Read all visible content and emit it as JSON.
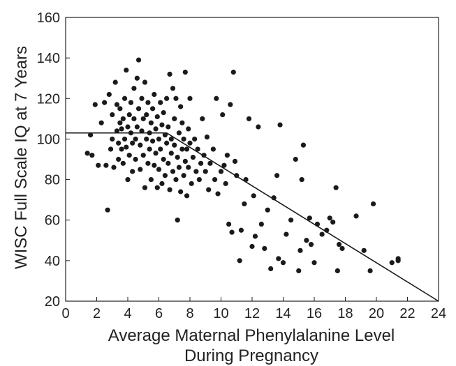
{
  "chart_data": {
    "type": "scatter",
    "title": "",
    "xlabel": "Average Maternal Phenylalanine Level",
    "xlabel_line2": "During Pregnancy",
    "ylabel": "WISC Full Scale IQ at 7 Years",
    "xlim": [
      0,
      24
    ],
    "ylim": [
      20,
      160
    ],
    "xticks": [
      0,
      2,
      4,
      6,
      8,
      10,
      12,
      14,
      16,
      18,
      20,
      22,
      24
    ],
    "yticks": [
      20,
      40,
      60,
      80,
      100,
      120,
      140,
      160
    ],
    "grid": false,
    "legend": "none",
    "colors": {
      "points": "#1a1a1a",
      "fit_line": "#1a1a1a",
      "axes": "#222222"
    },
    "fit_line": [
      [
        0,
        103
      ],
      [
        6.5,
        103
      ],
      [
        24,
        20
      ]
    ],
    "points": [
      [
        1.4,
        93
      ],
      [
        1.6,
        102
      ],
      [
        1.7,
        92
      ],
      [
        1.9,
        117
      ],
      [
        2.1,
        87
      ],
      [
        2.3,
        108
      ],
      [
        2.5,
        118
      ],
      [
        2.6,
        87
      ],
      [
        2.7,
        65
      ],
      [
        2.8,
        122
      ],
      [
        2.9,
        95
      ],
      [
        3.0,
        100
      ],
      [
        3.0,
        112
      ],
      [
        3.1,
        86
      ],
      [
        3.2,
        128
      ],
      [
        3.3,
        117
      ],
      [
        3.3,
        104
      ],
      [
        3.4,
        90
      ],
      [
        3.4,
        98
      ],
      [
        3.5,
        108
      ],
      [
        3.5,
        115
      ],
      [
        3.6,
        95
      ],
      [
        3.6,
        105
      ],
      [
        3.7,
        110
      ],
      [
        3.7,
        88
      ],
      [
        3.8,
        120
      ],
      [
        3.8,
        100
      ],
      [
        3.9,
        96
      ],
      [
        3.9,
        134
      ],
      [
        4.0,
        106
      ],
      [
        4.0,
        80
      ],
      [
        4.1,
        112
      ],
      [
        4.1,
        92
      ],
      [
        4.2,
        118
      ],
      [
        4.2,
        103
      ],
      [
        4.3,
        84
      ],
      [
        4.3,
        98
      ],
      [
        4.4,
        125
      ],
      [
        4.4,
        110
      ],
      [
        4.5,
        100
      ],
      [
        4.5,
        90
      ],
      [
        4.6,
        130
      ],
      [
        4.6,
        106
      ],
      [
        4.7,
        139
      ],
      [
        4.7,
        115
      ],
      [
        4.8,
        97
      ],
      [
        4.8,
        85
      ],
      [
        4.9,
        120
      ],
      [
        4.9,
        104
      ],
      [
        5.0,
        110
      ],
      [
        5.0,
        92
      ],
      [
        5.1,
        76
      ],
      [
        5.1,
        128
      ],
      [
        5.2,
        100
      ],
      [
        5.2,
        112
      ],
      [
        5.3,
        88
      ],
      [
        5.3,
        118
      ],
      [
        5.4,
        103
      ],
      [
        5.4,
        95
      ],
      [
        5.5,
        108
      ],
      [
        5.5,
        80
      ],
      [
        5.6,
        115
      ],
      [
        5.6,
        99
      ],
      [
        5.7,
        87
      ],
      [
        5.7,
        122
      ],
      [
        5.8,
        105
      ],
      [
        5.8,
        93
      ],
      [
        5.9,
        111
      ],
      [
        5.9,
        76
      ],
      [
        6.0,
        100
      ],
      [
        6.0,
        85
      ],
      [
        6.1,
        118
      ],
      [
        6.1,
        95
      ],
      [
        6.2,
        107
      ],
      [
        6.2,
        78
      ],
      [
        6.3,
        113
      ],
      [
        6.3,
        90
      ],
      [
        6.4,
        102
      ],
      [
        6.4,
        82
      ],
      [
        6.5,
        98
      ],
      [
        6.5,
        120
      ],
      [
        6.6,
        88
      ],
      [
        6.6,
        106
      ],
      [
        6.7,
        75
      ],
      [
        6.7,
        132
      ],
      [
        6.8,
        100
      ],
      [
        6.8,
        93
      ],
      [
        6.9,
        125
      ],
      [
        6.9,
        84
      ],
      [
        7.0,
        110
      ],
      [
        7.0,
        97
      ],
      [
        7.1,
        80
      ],
      [
        7.1,
        120
      ],
      [
        7.2,
        91
      ],
      [
        7.2,
        60
      ],
      [
        7.3,
        103
      ],
      [
        7.3,
        86
      ],
      [
        7.4,
        116
      ],
      [
        7.4,
        74
      ],
      [
        7.5,
        95
      ],
      [
        7.5,
        108
      ],
      [
        7.6,
        82
      ],
      [
        7.6,
        100
      ],
      [
        7.7,
        89
      ],
      [
        7.7,
        133
      ],
      [
        7.8,
        95
      ],
      [
        7.8,
        72
      ],
      [
        7.9,
        105
      ],
      [
        7.9,
        86
      ],
      [
        8.0,
        98
      ],
      [
        8.0,
        120
      ],
      [
        8.1,
        78
      ],
      [
        8.2,
        91
      ],
      [
        8.3,
        100
      ],
      [
        8.4,
        84
      ],
      [
        8.5,
        95
      ],
      [
        8.6,
        80
      ],
      [
        8.7,
        88
      ],
      [
        8.8,
        110
      ],
      [
        8.9,
        92
      ],
      [
        9.0,
        84
      ],
      [
        9.1,
        101
      ],
      [
        9.2,
        75
      ],
      [
        9.3,
        88
      ],
      [
        9.5,
        95
      ],
      [
        9.6,
        80
      ],
      [
        9.7,
        120
      ],
      [
        9.8,
        73
      ],
      [
        10.0,
        84
      ],
      [
        10.1,
        112
      ],
      [
        10.2,
        87
      ],
      [
        10.3,
        78
      ],
      [
        10.4,
        92
      ],
      [
        10.5,
        58
      ],
      [
        10.6,
        117
      ],
      [
        10.7,
        54
      ],
      [
        10.8,
        133
      ],
      [
        10.9,
        89
      ],
      [
        11.0,
        82
      ],
      [
        11.2,
        40
      ],
      [
        11.3,
        55
      ],
      [
        11.5,
        68
      ],
      [
        11.6,
        80
      ],
      [
        11.8,
        110
      ],
      [
        12.0,
        47
      ],
      [
        12.1,
        72
      ],
      [
        12.2,
        52
      ],
      [
        12.4,
        106
      ],
      [
        12.6,
        58
      ],
      [
        12.8,
        46
      ],
      [
        13.0,
        65
      ],
      [
        13.2,
        36
      ],
      [
        13.4,
        71
      ],
      [
        13.6,
        82
      ],
      [
        13.7,
        41
      ],
      [
        13.8,
        107
      ],
      [
        14.0,
        39
      ],
      [
        14.2,
        53
      ],
      [
        14.5,
        60
      ],
      [
        14.8,
        90
      ],
      [
        15.0,
        35
      ],
      [
        15.1,
        45
      ],
      [
        15.2,
        80
      ],
      [
        15.3,
        97
      ],
      [
        15.5,
        50
      ],
      [
        15.7,
        61
      ],
      [
        15.8,
        48
      ],
      [
        16.0,
        39
      ],
      [
        16.2,
        58
      ],
      [
        16.5,
        53
      ],
      [
        16.8,
        55
      ],
      [
        17.0,
        61
      ],
      [
        17.2,
        59
      ],
      [
        17.4,
        76
      ],
      [
        17.5,
        35
      ],
      [
        17.6,
        48
      ],
      [
        17.8,
        46
      ],
      [
        18.7,
        62
      ],
      [
        19.2,
        45
      ],
      [
        19.6,
        35
      ],
      [
        19.8,
        68
      ],
      [
        21.0,
        39
      ],
      [
        21.4,
        40
      ],
      [
        21.4,
        41
      ]
    ]
  }
}
